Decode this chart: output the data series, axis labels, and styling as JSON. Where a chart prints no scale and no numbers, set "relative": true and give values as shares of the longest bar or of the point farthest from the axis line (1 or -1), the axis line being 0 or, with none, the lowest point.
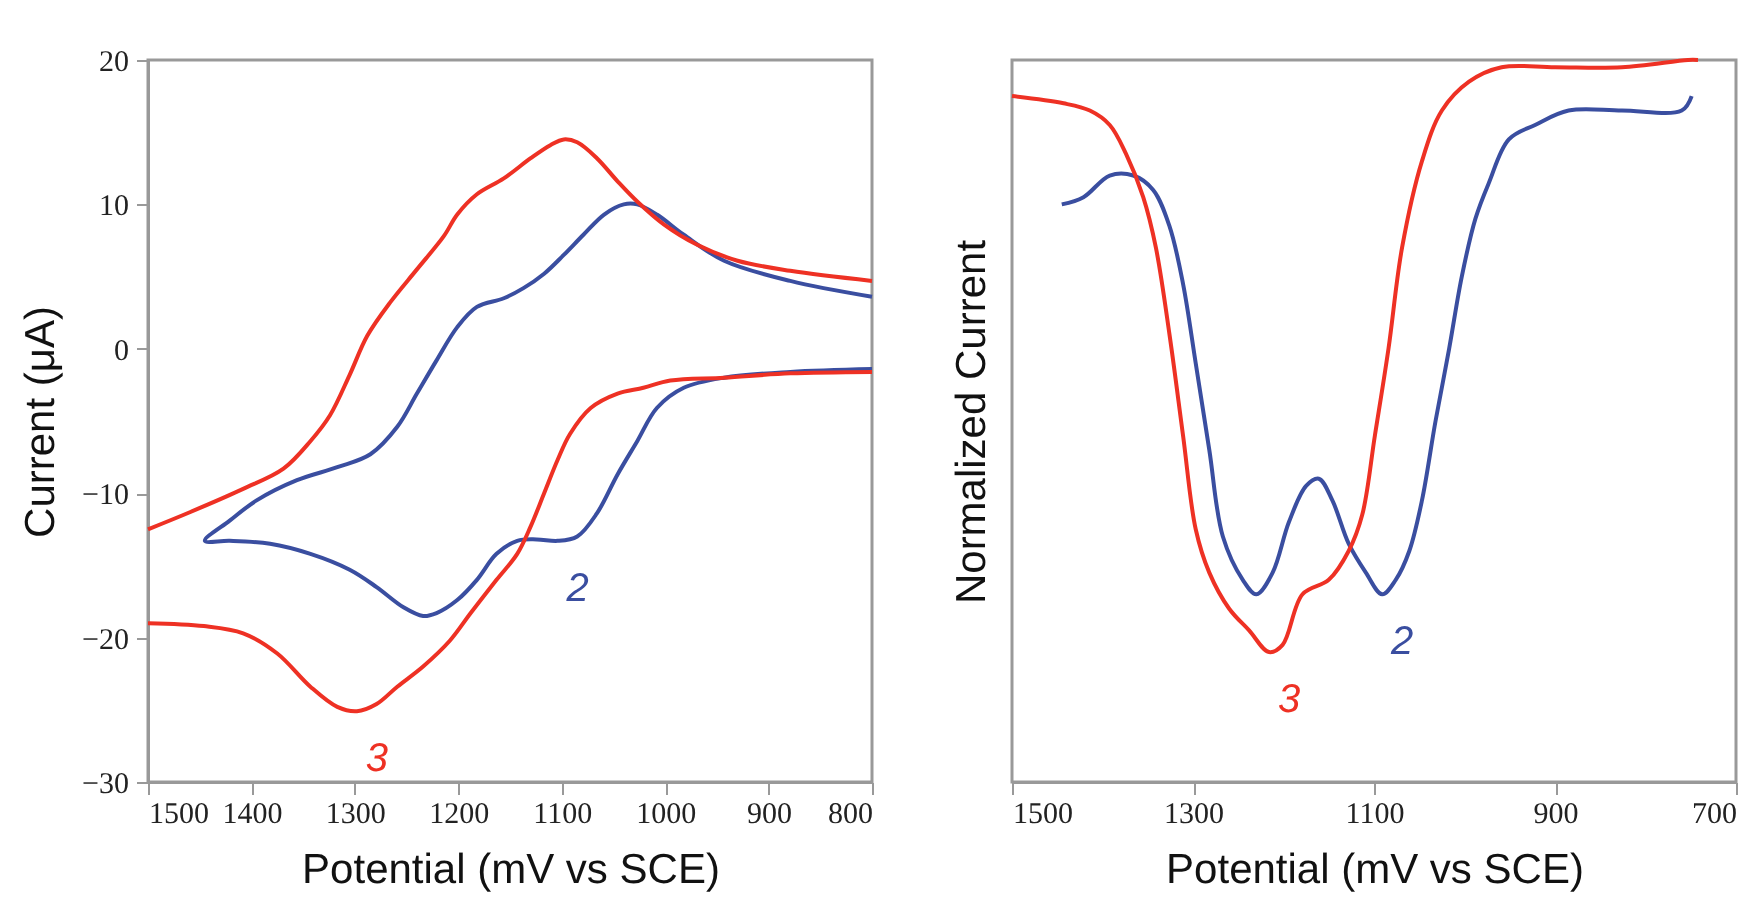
{
  "chart_data": [
    {
      "type": "line",
      "xlabel": "Potential (mV vs SCE)",
      "ylabel": "Current (μA)",
      "xlim": [
        1500,
        800
      ],
      "xticks": [
        1500,
        1400,
        1300,
        1200,
        1100,
        1000,
        900,
        800
      ],
      "ylim": [
        -30,
        20
      ],
      "yticks": [
        -30,
        -20,
        -10,
        0,
        10,
        20
      ],
      "grid": false,
      "legend": false,
      "series": [
        {
          "name": "2",
          "color": "#3a4ea0",
          "x": [
            800,
            879,
            943,
            982,
            1008,
            1027,
            1046,
            1066,
            1085,
            1104,
            1124,
            1143,
            1163,
            1182,
            1201,
            1221,
            1234,
            1253,
            1279,
            1305,
            1343,
            1382,
            1421,
            1445,
            1421,
            1395,
            1356,
            1317,
            1285,
            1259,
            1240,
            1221,
            1201,
            1182,
            1156,
            1137,
            1117,
            1098,
            1079,
            1059,
            1040,
            1027,
            1008,
            982,
            943,
            879,
            800
          ],
          "values": [
            -1.4,
            -1.6,
            -2.0,
            -2.7,
            -4.1,
            -6.4,
            -8.7,
            -11.4,
            -13.0,
            -13.3,
            -13.2,
            -13.3,
            -14.2,
            -16.0,
            -17.4,
            -18.3,
            -18.5,
            -17.9,
            -16.5,
            -15.3,
            -14.2,
            -13.5,
            -13.3,
            -13.3,
            -11.9,
            -10.5,
            -9.1,
            -8.2,
            -7.3,
            -5.4,
            -3.1,
            -0.8,
            1.5,
            2.9,
            3.5,
            4.2,
            5.2,
            6.5,
            7.9,
            9.3,
            10.0,
            10.0,
            9.3,
            7.9,
            6.1,
            4.7,
            3.6
          ]
        },
        {
          "name": "3",
          "color": "#ee3124",
          "x": [
            1500,
            1459,
            1408,
            1369,
            1343,
            1324,
            1305,
            1288,
            1266,
            1240,
            1214,
            1201,
            1182,
            1156,
            1130,
            1111,
            1098,
            1085,
            1066,
            1046,
            1027,
            1001,
            969,
            930,
            879,
            800,
            null,
            800,
            879,
            943,
            995,
            1021,
            1046,
            1072,
            1092,
            1104,
            1117,
            1130,
            1143,
            1163,
            1188,
            1208,
            1234,
            1259,
            1279,
            1298,
            1317,
            1343,
            1375,
            1408,
            1446,
            1500
          ],
          "values": [
            -12.5,
            -11.3,
            -9.7,
            -8.3,
            -6.4,
            -4.6,
            -1.8,
            0.9,
            3.2,
            5.5,
            7.8,
            9.3,
            10.7,
            11.8,
            13.2,
            14.1,
            14.5,
            14.3,
            13.2,
            11.6,
            10.2,
            8.6,
            7.2,
            6.1,
            5.4,
            4.7,
            null,
            -1.6,
            -1.7,
            -2.0,
            -2.2,
            -2.7,
            -3.1,
            -4.1,
            -5.9,
            -7.7,
            -10.0,
            -12.3,
            -14.2,
            -16.0,
            -18.3,
            -20.2,
            -22.0,
            -23.4,
            -24.6,
            -25.1,
            -24.8,
            -23.4,
            -21.1,
            -19.7,
            -19.2,
            -19.0
          ]
        }
      ],
      "tick_labels": true
    },
    {
      "type": "line",
      "xlabel": "Potential (mV vs SCE)",
      "ylabel": "Normalized Current",
      "xlim": [
        1500,
        700
      ],
      "xticks": [
        1500,
        1300,
        1100,
        900,
        700
      ],
      "relative": true,
      "grid": false,
      "legend": false,
      "series": [
        {
          "name": "2",
          "color": "#3a4ea0",
          "x": [
            1445,
            1421,
            1392,
            1366,
            1344,
            1326,
            1311,
            1297,
            1282,
            1267,
            1245,
            1230,
            1212,
            1194,
            1175,
            1161,
            1146,
            1128,
            1109,
            1091,
            1076,
            1061,
            1047,
            1032,
            1017,
            1003,
            988,
            973,
            951,
            922,
            885,
            826,
            760,
            749
          ],
          "values": [
            0.8,
            0.81,
            0.84,
            0.84,
            0.82,
            0.77,
            0.69,
            0.58,
            0.46,
            0.34,
            0.28,
            0.26,
            0.29,
            0.36,
            0.41,
            0.42,
            0.39,
            0.33,
            0.29,
            0.26,
            0.28,
            0.32,
            0.39,
            0.5,
            0.6,
            0.7,
            0.78,
            0.83,
            0.89,
            0.91,
            0.93,
            0.93,
            0.93,
            0.95
          ]
        },
        {
          "name": "3",
          "color": "#ee3124",
          "x": [
            1500,
            1443,
            1414,
            1392,
            1374,
            1355,
            1341,
            1326,
            1311,
            1297,
            1282,
            1260,
            1238,
            1216,
            1201,
            1179,
            1150,
            1128,
            1113,
            1099,
            1084,
            1069,
            1047,
            1025,
            995,
            959,
            900,
            826,
            753,
            742
          ],
          "values": [
            0.95,
            0.94,
            0.93,
            0.91,
            0.87,
            0.81,
            0.74,
            0.62,
            0.48,
            0.35,
            0.29,
            0.24,
            0.21,
            0.18,
            0.19,
            0.26,
            0.28,
            0.32,
            0.37,
            0.48,
            0.6,
            0.74,
            0.86,
            0.93,
            0.97,
            0.99,
            0.99,
            0.99,
            1.0,
            1.0
          ]
        }
      ],
      "tick_labels": "x"
    }
  ]
}
